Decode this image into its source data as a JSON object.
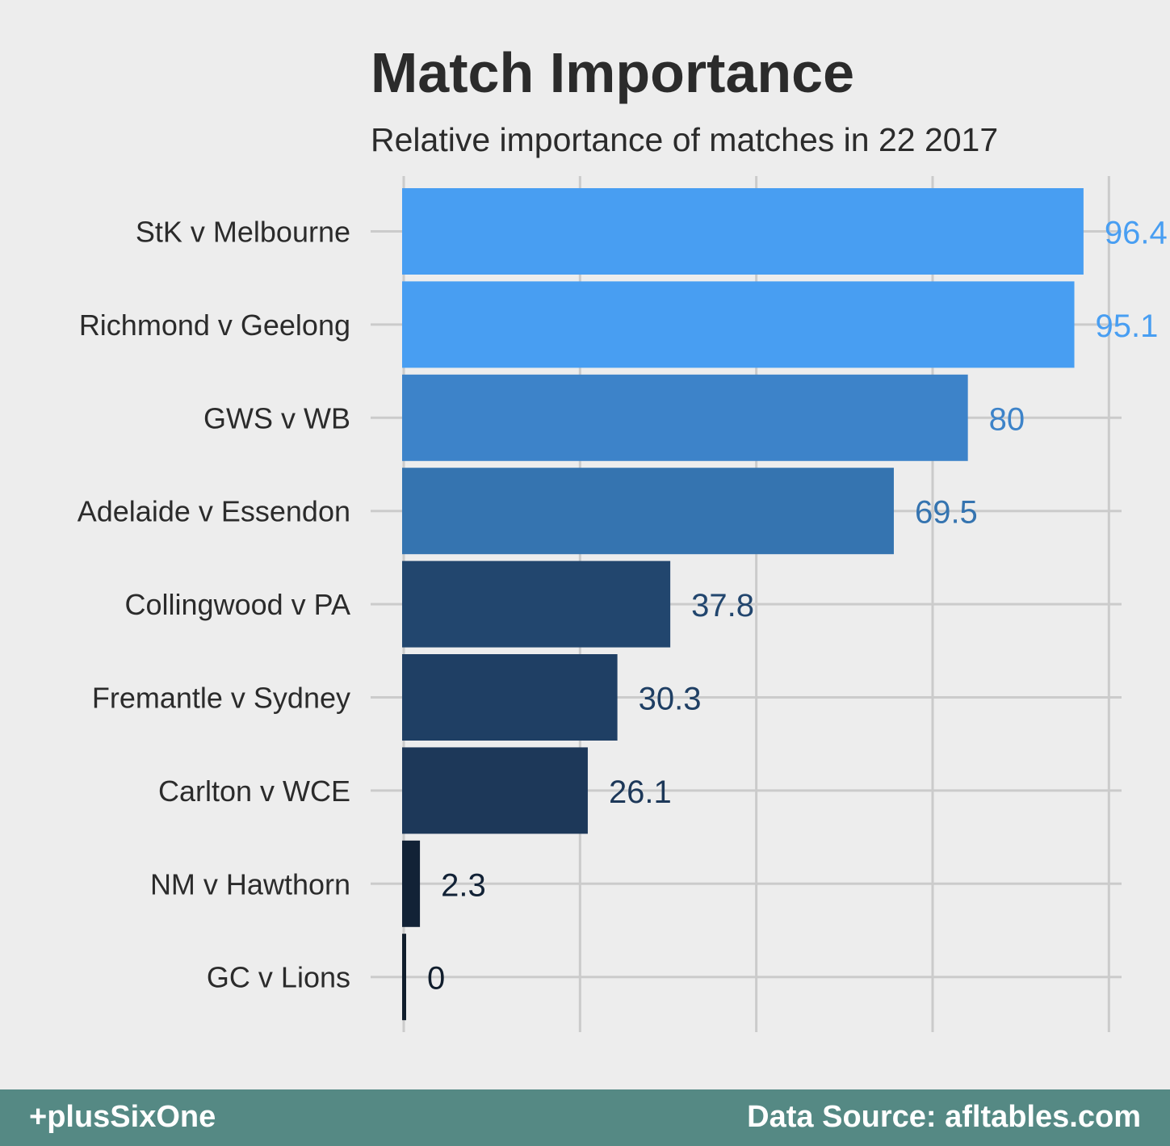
{
  "chart_data": {
    "type": "bar",
    "orientation": "horizontal",
    "title": "Match Importance",
    "subtitle": "Relative importance of matches in 22 2017",
    "xlabel": "",
    "ylabel": "",
    "xlim": [
      0,
      100
    ],
    "grid": true,
    "categories": [
      "StK v Melbourne",
      "Richmond v Geelong",
      "GWS v WB",
      "Adelaide v Essendon",
      "Collingwood v PA",
      "Fremantle v Sydney",
      "Carlton v WCE",
      "NM v Hawthorn",
      "GC v Lions"
    ],
    "values": [
      96.4,
      95.1,
      80,
      69.5,
      37.8,
      30.3,
      26.1,
      2.3,
      0
    ],
    "value_labels": [
      "96.4",
      "95.1",
      "80",
      "69.5",
      "37.8",
      "30.3",
      "26.1",
      "2.3",
      "0"
    ],
    "colors": [
      "#489ef2",
      "#489ef2",
      "#3d83c9",
      "#3574b0",
      "#22466e",
      "#1f3f64",
      "#1d3859",
      "#122236",
      "#101d2c"
    ]
  },
  "footer": {
    "left": "+plusSixOne",
    "right": "Data Source: afltables.com"
  }
}
